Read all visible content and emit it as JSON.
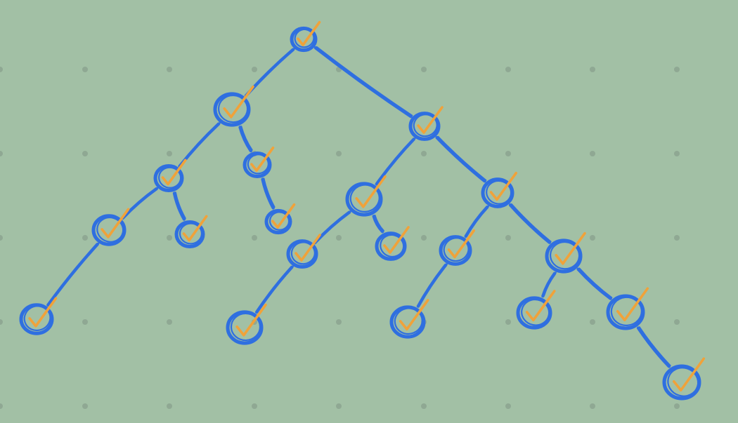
{
  "colors": {
    "background": "#a2c0a5",
    "grid_dot": "#8fa893",
    "node_stroke": "#2f6fe0",
    "edge_stroke": "#2f6fe0",
    "check": "#f0a23a"
  },
  "diagram": {
    "type": "binary-tree",
    "node_count": 20,
    "every_node_marked": "checkmark",
    "grid": "dotted",
    "nodes": [
      {
        "id": "n0",
        "mark": "check-icon"
      },
      {
        "id": "n1",
        "mark": "check-icon"
      },
      {
        "id": "n2",
        "mark": "check-icon"
      },
      {
        "id": "n3",
        "mark": "check-icon"
      },
      {
        "id": "n4",
        "mark": "check-icon"
      },
      {
        "id": "n5",
        "mark": "check-icon"
      },
      {
        "id": "n6",
        "mark": "check-icon"
      },
      {
        "id": "n7",
        "mark": "check-icon"
      },
      {
        "id": "n8",
        "mark": "check-icon"
      },
      {
        "id": "n9",
        "mark": "check-icon"
      },
      {
        "id": "n10",
        "mark": "check-icon"
      },
      {
        "id": "n11",
        "mark": "check-icon"
      },
      {
        "id": "n12",
        "mark": "check-icon"
      },
      {
        "id": "n13",
        "mark": "check-icon"
      },
      {
        "id": "n14",
        "mark": "check-icon"
      },
      {
        "id": "n15",
        "mark": "check-icon"
      },
      {
        "id": "n16",
        "mark": "check-icon"
      },
      {
        "id": "n17",
        "mark": "check-icon"
      },
      {
        "id": "n18",
        "mark": "check-icon"
      },
      {
        "id": "n19",
        "mark": "check-icon"
      }
    ],
    "edges": [
      [
        "n0",
        "n1"
      ],
      [
        "n0",
        "n2"
      ],
      [
        "n1",
        "n3"
      ],
      [
        "n1",
        "n4"
      ],
      [
        "n3",
        "n5"
      ],
      [
        "n3",
        "n6"
      ],
      [
        "n5",
        "n7"
      ],
      [
        "n4",
        "n8"
      ],
      [
        "n2",
        "n9"
      ],
      [
        "n2",
        "n10"
      ],
      [
        "n9",
        "n11"
      ],
      [
        "n9",
        "n12"
      ],
      [
        "n11",
        "n13"
      ],
      [
        "n10",
        "n14"
      ],
      [
        "n10",
        "n15"
      ],
      [
        "n14",
        "n16"
      ],
      [
        "n15",
        "n17"
      ],
      [
        "n15",
        "n18"
      ],
      [
        "n18",
        "n19"
      ]
    ]
  }
}
